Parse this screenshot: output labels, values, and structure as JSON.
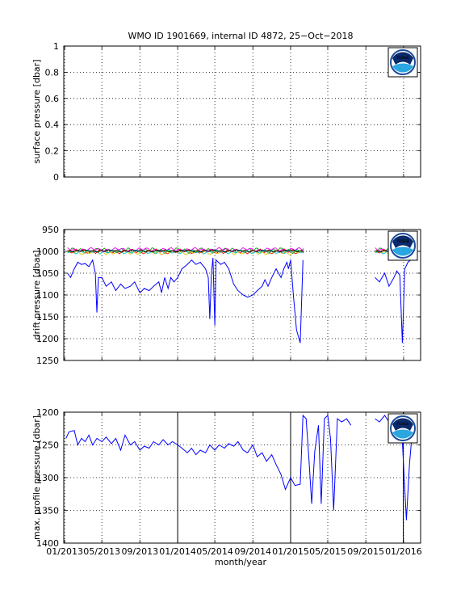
{
  "figure": {
    "title": "WMO ID 1901669, internal ID 4872, 25−Oct−2018",
    "xlabel": "month/year",
    "xticks": [
      "01/2013",
      "05/2013",
      "09/2013",
      "01/2014",
      "05/2014",
      "09/2014",
      "01/2015",
      "05/2015",
      "09/2015",
      "01/2016"
    ],
    "logo_icon": "noaa-logo-icon",
    "logo_text": "noaa"
  },
  "chart_data": [
    {
      "type": "line",
      "panel": "surface",
      "ylabel": "surface pressure [dbar]",
      "ylim": [
        0,
        1
      ],
      "yticks": [
        "0",
        "0.2",
        "0.4",
        "0.6",
        "0.8",
        "1"
      ],
      "y_reversed": false,
      "grid": true,
      "series": []
    },
    {
      "type": "line",
      "panel": "drift",
      "ylabel": "drift pressure [dbar]",
      "ylim": [
        950,
        1250
      ],
      "yticks": [
        "950",
        "1000",
        "1050",
        "1100",
        "1150",
        "1200",
        "1250"
      ],
      "y_reversed": true,
      "grid": true,
      "series": [
        {
          "color": "#0000ff",
          "points": [
            [
              "2013-01-10",
              1050
            ],
            [
              "2013-01-20",
              1060
            ],
            [
              "2013-02-01",
              1040
            ],
            [
              "2013-02-12",
              1025
            ],
            [
              "2013-02-24",
              1030
            ],
            [
              "2013-03-08",
              1028
            ],
            [
              "2013-03-20",
              1035
            ],
            [
              "2013-04-01",
              1020
            ],
            [
              "2013-04-10",
              1050
            ],
            [
              "2013-04-15",
              1140
            ],
            [
              "2013-04-20",
              1060
            ],
            [
              "2013-05-01",
              1060
            ],
            [
              "2013-05-15",
              1080
            ],
            [
              "2013-06-01",
              1070
            ],
            [
              "2013-06-15",
              1090
            ],
            [
              "2013-07-01",
              1075
            ],
            [
              "2013-07-15",
              1085
            ],
            [
              "2013-08-01",
              1080
            ],
            [
              "2013-08-15",
              1070
            ],
            [
              "2013-09-01",
              1095
            ],
            [
              "2013-09-15",
              1085
            ],
            [
              "2013-10-01",
              1090
            ],
            [
              "2013-10-15",
              1080
            ],
            [
              "2013-11-01",
              1070
            ],
            [
              "2013-11-10",
              1095
            ],
            [
              "2013-11-20",
              1060
            ],
            [
              "2013-12-01",
              1085
            ],
            [
              "2013-12-10",
              1060
            ],
            [
              "2013-12-20",
              1070
            ],
            [
              "2014-01-01",
              1060
            ],
            [
              "2014-01-15",
              1040
            ],
            [
              "2014-02-01",
              1030
            ],
            [
              "2014-02-15",
              1020
            ],
            [
              "2014-03-01",
              1030
            ],
            [
              "2014-03-15",
              1025
            ],
            [
              "2014-04-01",
              1040
            ],
            [
              "2014-04-10",
              1060
            ],
            [
              "2014-04-15",
              1155
            ],
            [
              "2014-04-20",
              1050
            ],
            [
              "2014-04-25",
              1015
            ],
            [
              "2014-05-01",
              1170
            ],
            [
              "2014-05-05",
              1020
            ],
            [
              "2014-05-20",
              1030
            ],
            [
              "2014-06-01",
              1025
            ],
            [
              "2014-06-15",
              1040
            ],
            [
              "2014-07-01",
              1075
            ],
            [
              "2014-07-15",
              1090
            ],
            [
              "2014-08-01",
              1100
            ],
            [
              "2014-08-15",
              1105
            ],
            [
              "2014-09-01",
              1100
            ],
            [
              "2014-09-15",
              1090
            ],
            [
              "2014-10-01",
              1080
            ],
            [
              "2014-10-10",
              1065
            ],
            [
              "2014-10-20",
              1080
            ],
            [
              "2014-11-01",
              1060
            ],
            [
              "2014-11-15",
              1040
            ],
            [
              "2014-12-01",
              1060
            ],
            [
              "2014-12-10",
              1040
            ],
            [
              "2014-12-20",
              1025
            ],
            [
              "2014-12-25",
              1040
            ],
            [
              "2015-01-01",
              1020
            ],
            [
              "2015-01-10",
              1100
            ],
            [
              "2015-01-20",
              1180
            ],
            [
              "2015-02-01",
              1210
            ],
            [
              "2015-02-10",
              1020
            ]
          ]
        },
        {
          "color": "#0000ff",
          "points": [
            [
              "2015-10-01",
              1060
            ],
            [
              "2015-10-15",
              1070
            ],
            [
              "2015-11-01",
              1050
            ],
            [
              "2015-11-15",
              1080
            ],
            [
              "2015-12-01",
              1060
            ],
            [
              "2015-12-10",
              1045
            ],
            [
              "2015-12-20",
              1055
            ],
            [
              "2015-12-28",
              1210
            ],
            [
              "2016-01-05",
              1040
            ],
            [
              "2016-01-15",
              1025
            ],
            [
              "2016-02-01",
              1015
            ]
          ]
        },
        {
          "color": "#ff0000",
          "band": [
            1000,
            6
          ],
          "ranges": [
            [
              "2013-01-10",
              "2015-02-15"
            ],
            [
              "2015-10-01",
              "2016-01-05"
            ]
          ]
        },
        {
          "color": "#00aa00",
          "band": [
            998,
            7
          ],
          "ranges": [
            [
              "2013-01-10",
              "2015-02-15"
            ],
            [
              "2015-10-01",
              "2016-01-05"
            ]
          ]
        },
        {
          "color": "#e0c000",
          "band": [
            1002,
            6
          ],
          "ranges": [
            [
              "2013-01-10",
              "2015-02-15"
            ],
            [
              "2015-10-01",
              "2016-01-05"
            ]
          ]
        },
        {
          "color": "#ff00ff",
          "band": [
            996,
            5
          ],
          "ranges": [
            [
              "2013-01-10",
              "2015-02-15"
            ],
            [
              "2015-10-01",
              "2016-01-05"
            ]
          ]
        },
        {
          "color": "#00c0c0",
          "band": [
            1001,
            5
          ],
          "ranges": [
            [
              "2013-01-10",
              "2015-02-15"
            ],
            [
              "2015-10-01",
              "2016-01-05"
            ]
          ]
        },
        {
          "color": "#000000",
          "band": [
            999,
            3
          ],
          "ranges": [
            [
              "2013-01-10",
              "2015-02-15"
            ],
            [
              "2015-10-01",
              "2016-01-05"
            ]
          ]
        }
      ]
    },
    {
      "type": "line",
      "panel": "max-profile",
      "ylabel": "max. profile pressure [dbar]",
      "ylim": [
        1200,
        1400
      ],
      "yticks": [
        "1200",
        "1250",
        "1300",
        "1350",
        "1400"
      ],
      "y_reversed": true,
      "grid": true,
      "vlines": [
        "2014-01-01",
        "2015-01-01",
        "2015-12-31"
      ],
      "series": [
        {
          "color": "#0000ff",
          "points": [
            [
              "2013-01-05",
              1240
            ],
            [
              "2013-01-15",
              1230
            ],
            [
              "2013-02-01",
              1228
            ],
            [
              "2013-02-12",
              1250
            ],
            [
              "2013-02-24",
              1240
            ],
            [
              "2013-03-08",
              1245
            ],
            [
              "2013-03-20",
              1235
            ],
            [
              "2013-04-01",
              1250
            ],
            [
              "2013-04-15",
              1240
            ],
            [
              "2013-05-01",
              1245
            ],
            [
              "2013-05-15",
              1238
            ],
            [
              "2013-06-01",
              1248
            ],
            [
              "2013-06-15",
              1240
            ],
            [
              "2013-07-01",
              1258
            ],
            [
              "2013-07-15",
              1235
            ],
            [
              "2013-08-01",
              1250
            ],
            [
              "2013-08-15",
              1245
            ],
            [
              "2013-09-01",
              1258
            ],
            [
              "2013-09-15",
              1252
            ],
            [
              "2013-10-01",
              1255
            ],
            [
              "2013-10-15",
              1245
            ],
            [
              "2013-11-01",
              1250
            ],
            [
              "2013-11-15",
              1242
            ],
            [
              "2013-12-01",
              1250
            ],
            [
              "2013-12-15",
              1245
            ],
            [
              "2014-01-01",
              1250
            ],
            [
              "2014-01-15",
              1255
            ],
            [
              "2014-02-01",
              1262
            ],
            [
              "2014-02-15",
              1255
            ],
            [
              "2014-03-01",
              1265
            ],
            [
              "2014-03-15",
              1258
            ],
            [
              "2014-04-01",
              1262
            ],
            [
              "2014-04-15",
              1250
            ],
            [
              "2014-05-01",
              1258
            ],
            [
              "2014-05-15",
              1250
            ],
            [
              "2014-06-01",
              1255
            ],
            [
              "2014-06-15",
              1248
            ],
            [
              "2014-07-01",
              1252
            ],
            [
              "2014-07-15",
              1245
            ],
            [
              "2014-08-01",
              1258
            ],
            [
              "2014-08-15",
              1262
            ],
            [
              "2014-09-01",
              1250
            ],
            [
              "2014-09-15",
              1268
            ],
            [
              "2014-10-01",
              1262
            ],
            [
              "2014-10-15",
              1275
            ],
            [
              "2014-11-01",
              1265
            ],
            [
              "2014-11-15",
              1280
            ],
            [
              "2014-12-01",
              1295
            ],
            [
              "2014-12-15",
              1318
            ],
            [
              "2015-01-01",
              1300
            ],
            [
              "2015-01-15",
              1312
            ],
            [
              "2015-02-01",
              1310
            ],
            [
              "2015-02-10",
              1205
            ],
            [
              "2015-02-20",
              1210
            ],
            [
              "2015-03-01",
              1270
            ],
            [
              "2015-03-10",
              1340
            ],
            [
              "2015-03-20",
              1260
            ],
            [
              "2015-04-01",
              1220
            ],
            [
              "2015-04-10",
              1340
            ],
            [
              "2015-04-20",
              1210
            ],
            [
              "2015-05-01",
              1205
            ],
            [
              "2015-05-10",
              1240
            ],
            [
              "2015-05-20",
              1350
            ],
            [
              "2015-06-01",
              1210
            ],
            [
              "2015-06-15",
              1215
            ],
            [
              "2015-07-01",
              1210
            ],
            [
              "2015-07-15",
              1220
            ]
          ]
        },
        {
          "color": "#0000ff",
          "points": [
            [
              "2015-10-01",
              1210
            ],
            [
              "2015-10-15",
              1215
            ],
            [
              "2015-11-01",
              1205
            ],
            [
              "2015-11-15",
              1215
            ],
            [
              "2015-12-01",
              1210
            ],
            [
              "2015-12-15",
              1220
            ],
            [
              "2015-12-28",
              1245
            ],
            [
              "2016-01-10",
              1365
            ],
            [
              "2016-01-20",
              1280
            ],
            [
              "2016-01-28",
              1235
            ]
          ]
        }
      ]
    }
  ]
}
